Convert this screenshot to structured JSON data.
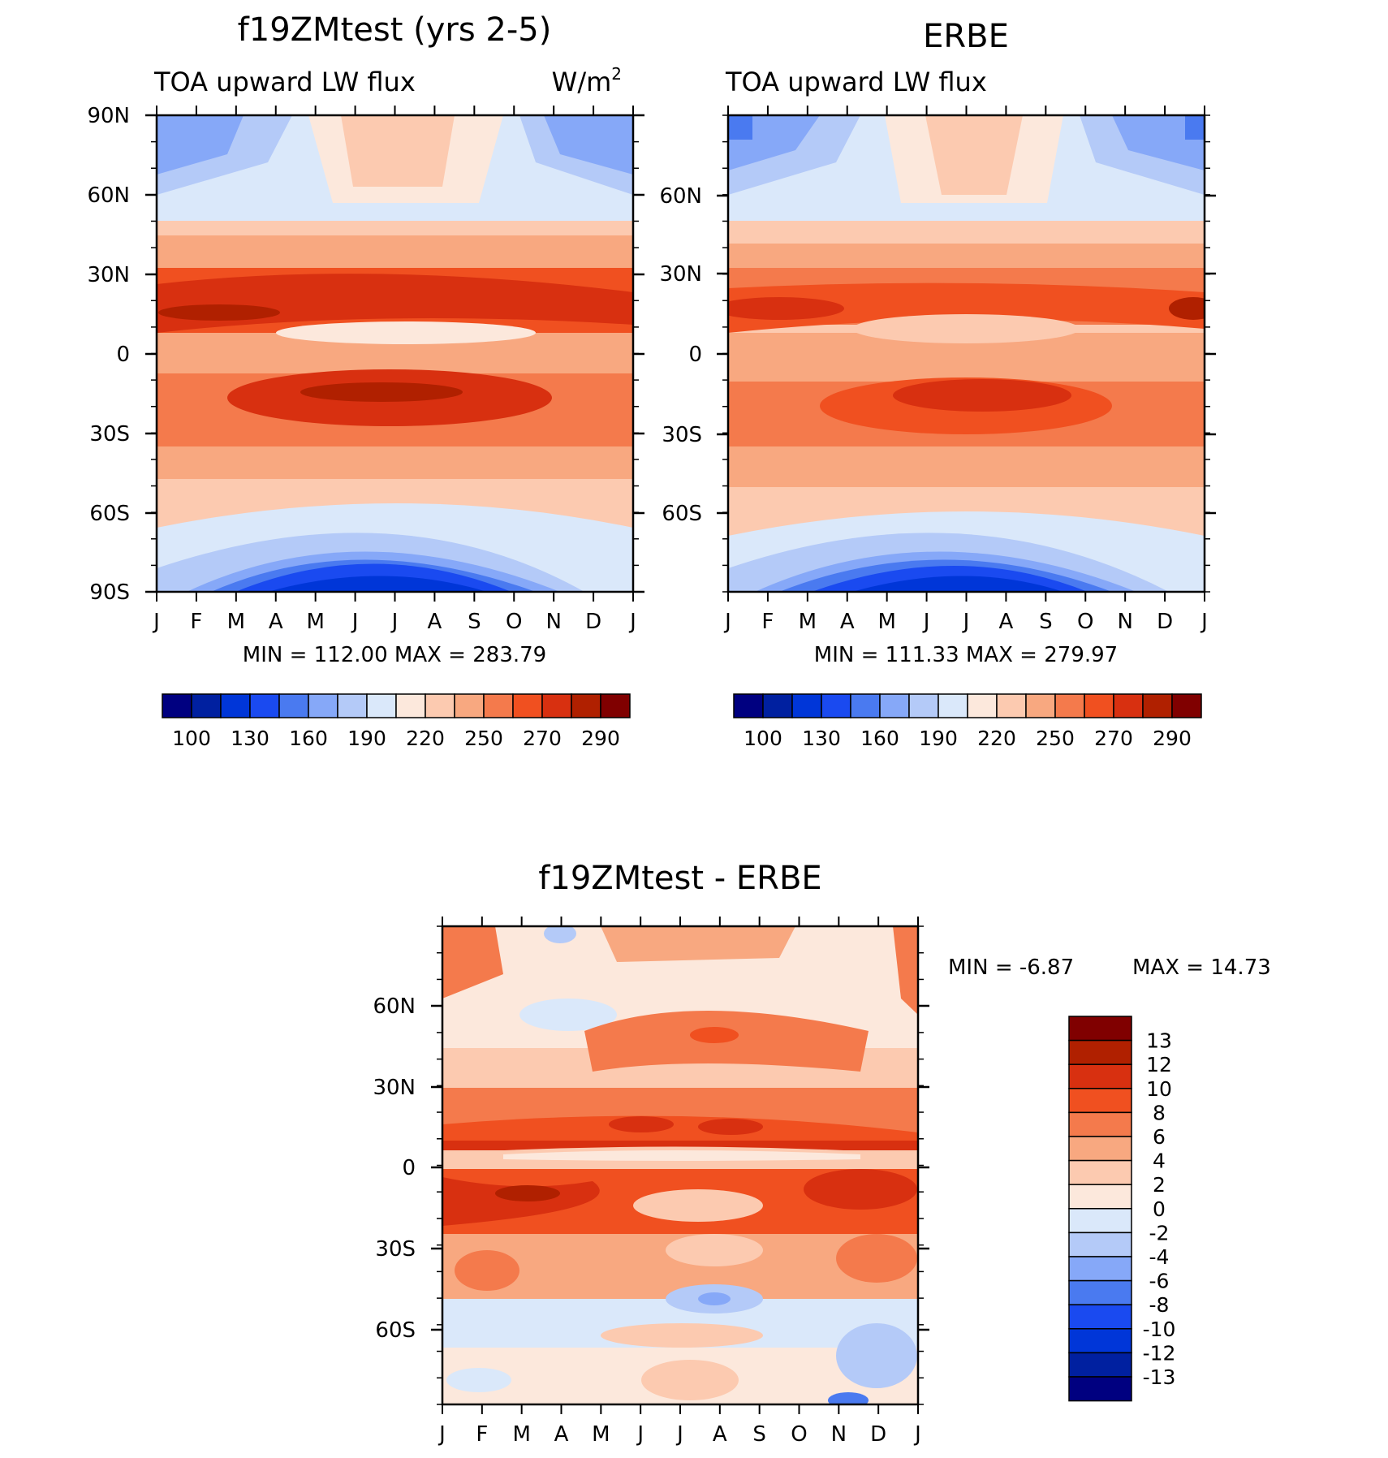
{
  "chart_data": [
    {
      "type": "heatmap",
      "title": "f19ZMtest (yrs 2-5)",
      "subtitle_left": "TOA upward LW flux",
      "subtitle_right": "W/m",
      "subtitle_right_sup": "2",
      "x_ticks": [
        "J",
        "F",
        "M",
        "A",
        "M",
        "J",
        "J",
        "A",
        "S",
        "O",
        "N",
        "D",
        "J"
      ],
      "y_ticks": [
        "90N",
        "60N",
        "30N",
        "0",
        "30S",
        "60S",
        "90S"
      ],
      "minmax": "MIN =  112.00  MAX =  283.79",
      "colorbar_labels": [
        "100",
        "130",
        "160",
        "190",
        "220",
        "250",
        "270",
        "290"
      ],
      "colors": [
        "#000080",
        "#0020a0",
        "#0036d8",
        "#1a4af0",
        "#4a7af0",
        "#86a8f8",
        "#b4caf8",
        "#dae8fa",
        "#fce8dc",
        "#fccab0",
        "#f8a880",
        "#f47a4c",
        "#f05020",
        "#d83010",
        "#b02000",
        "#800000"
      ]
    },
    {
      "type": "heatmap",
      "title": "ERBE",
      "subtitle_left": "TOA upward LW flux",
      "x_ticks": [
        "J",
        "F",
        "M",
        "A",
        "M",
        "J",
        "J",
        "A",
        "S",
        "O",
        "N",
        "D",
        "J"
      ],
      "y_ticks": [
        "60N",
        "30N",
        "0",
        "30S",
        "60S"
      ],
      "minmax": "MIN =  111.33  MAX =  279.97",
      "colorbar_labels": [
        "100",
        "130",
        "160",
        "190",
        "220",
        "250",
        "270",
        "290"
      ]
    },
    {
      "type": "heatmap",
      "title": "f19ZMtest - ERBE",
      "x_ticks": [
        "J",
        "F",
        "M",
        "A",
        "M",
        "J",
        "J",
        "A",
        "S",
        "O",
        "N",
        "D",
        "J"
      ],
      "y_ticks": [
        "60N",
        "30N",
        "0",
        "30S",
        "60S"
      ],
      "minmax_min": "MIN =   -6.87",
      "minmax_max": "MAX =   14.73",
      "colorbar_labels": [
        "13",
        "12",
        "10",
        "8",
        "6",
        "4",
        "2",
        "0",
        "-2",
        "-4",
        "-6",
        "-8",
        "-10",
        "-12",
        "-13"
      ],
      "colors": [
        "#800000",
        "#b02000",
        "#d83010",
        "#f05020",
        "#f47a4c",
        "#f8a880",
        "#fccab0",
        "#fce8dc",
        "#dae8fa",
        "#b4caf8",
        "#86a8f8",
        "#4a7af0",
        "#1a4af0",
        "#0036d8",
        "#0020a0",
        "#000080"
      ]
    }
  ]
}
